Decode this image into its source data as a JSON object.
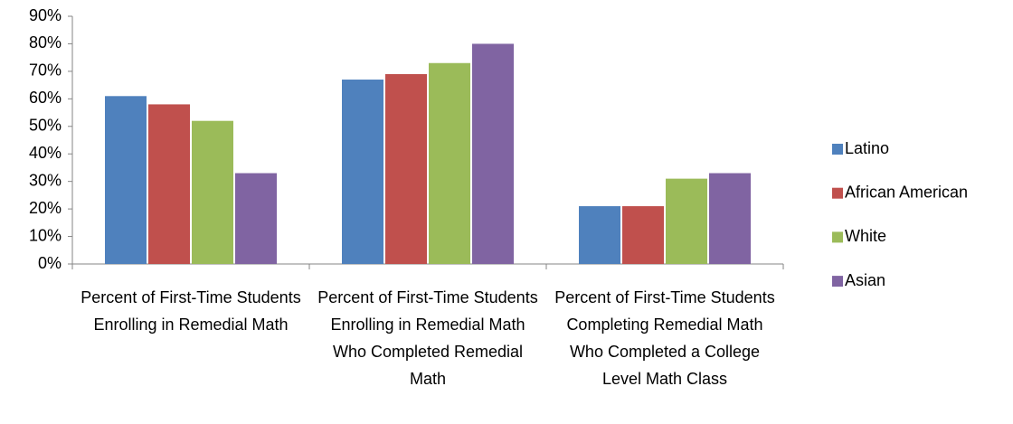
{
  "chart_data": {
    "type": "bar",
    "categories": [
      "Percent of First-Time Students Enrolling in Remedial Math",
      "Percent of First-Time Students Enrolling in Remedial Math Who Completed Remedial Math",
      "Percent of First-Time Students Completing Remedial Math Who Completed a College Level Math Class"
    ],
    "series": [
      {
        "name": "Latino",
        "color": "#4f81bd",
        "values": [
          61,
          67,
          21
        ]
      },
      {
        "name": "African American",
        "color": "#c0504d",
        "values": [
          58,
          69,
          21
        ]
      },
      {
        "name": "White",
        "color": "#9bbb59",
        "values": [
          52,
          73,
          31
        ]
      },
      {
        "name": "Asian",
        "color": "#8064a2",
        "values": [
          33,
          80,
          33
        ]
      }
    ],
    "ylim": [
      0,
      90
    ],
    "yticks": [
      {
        "value": 0,
        "label": "0%"
      },
      {
        "value": 10,
        "label": "10%"
      },
      {
        "value": 20,
        "label": "20%"
      },
      {
        "value": 30,
        "label": "30%"
      },
      {
        "value": 40,
        "label": "40%"
      },
      {
        "value": 50,
        "label": "50%"
      },
      {
        "value": 60,
        "label": "60%"
      },
      {
        "value": 70,
        "label": "70%"
      },
      {
        "value": 80,
        "label": "80%"
      },
      {
        "value": 90,
        "label": "90%"
      }
    ],
    "grid": false,
    "legend": "right"
  }
}
